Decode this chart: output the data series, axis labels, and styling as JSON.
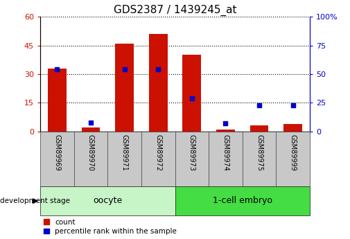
{
  "title": "GDS2387 / 1439245_at",
  "samples": [
    "GSM89969",
    "GSM89970",
    "GSM89971",
    "GSM89972",
    "GSM89973",
    "GSM89974",
    "GSM89975",
    "GSM89999"
  ],
  "count_values": [
    33,
    2,
    46,
    51,
    40,
    1,
    3,
    4
  ],
  "percentile_values": [
    54,
    8,
    54,
    54,
    29,
    7,
    23,
    23
  ],
  "left_ylim": [
    0,
    60
  ],
  "right_ylim": [
    0,
    100
  ],
  "left_yticks": [
    0,
    15,
    30,
    45,
    60
  ],
  "right_yticks": [
    0,
    25,
    50,
    75,
    100
  ],
  "left_ytick_labels": [
    "0",
    "15",
    "30",
    "45",
    "60"
  ],
  "right_ytick_labels": [
    "0",
    "25",
    "50",
    "75",
    "100%"
  ],
  "groups": [
    {
      "label": "oocyte",
      "indices": [
        0,
        1,
        2,
        3
      ],
      "color": "#c8f5c8"
    },
    {
      "label": "1-cell embryo",
      "indices": [
        4,
        5,
        6,
        7
      ],
      "color": "#44dd44"
    }
  ],
  "bar_color": "#cc1100",
  "dot_color": "#0000cc",
  "left_axis_color": "#cc1100",
  "right_axis_color": "#0000cc",
  "grid_color": "black",
  "bg_color": "#ffffff",
  "tick_label_bg": "#c8c8c8",
  "group_label_font_size": 9,
  "tick_font_size": 8,
  "title_font_size": 11,
  "legend_count_label": "count",
  "legend_pct_label": "percentile rank within the sample",
  "dev_stage_label": "development stage"
}
